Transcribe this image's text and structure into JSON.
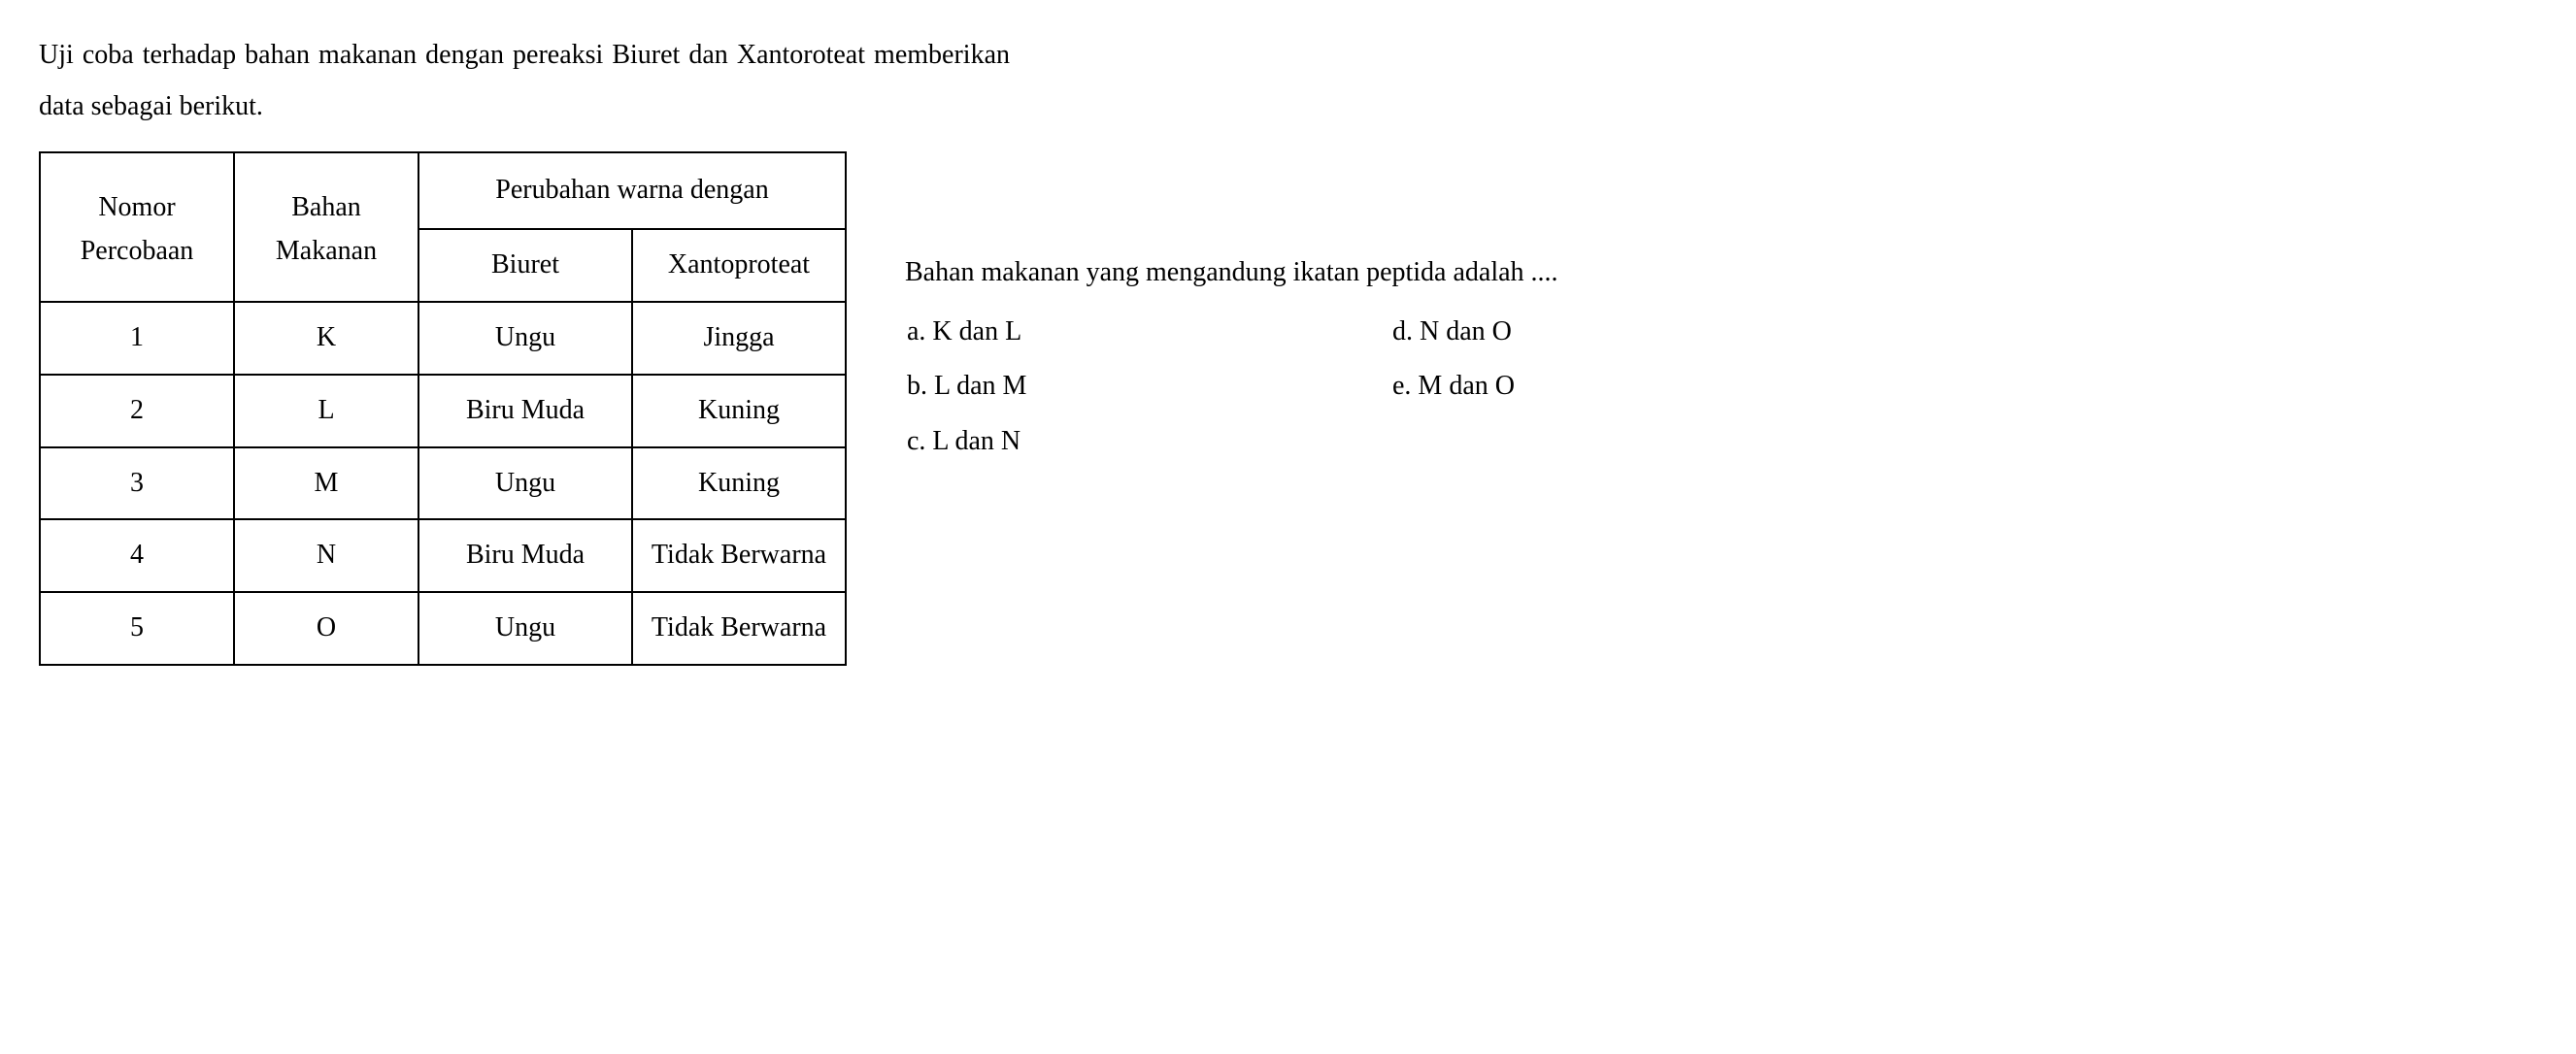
{
  "intro": {
    "line1": "Uji coba terhadap bahan makanan dengan pereaksi Biuret dan Xantoroteat memberikan data sebagai berikut."
  },
  "table": {
    "headers": {
      "nomor": "Nomor Percobaan",
      "bahan": "Bahan Makanan",
      "perubahan": "Perubahan warna dengan",
      "biuret": "Biuret",
      "xanto": "Xantoproteat"
    },
    "rows": [
      {
        "nomor": "1",
        "bahan": "K",
        "biuret": "Ungu",
        "xanto": "Jingga"
      },
      {
        "nomor": "2",
        "bahan": "L",
        "biuret": "Biru Muda",
        "xanto": "Kuning"
      },
      {
        "nomor": "3",
        "bahan": "M",
        "biuret": "Ungu",
        "xanto": "Kuning"
      },
      {
        "nomor": "4",
        "bahan": "N",
        "biuret": "Biru Muda",
        "xanto": "Tidak Berwarna"
      },
      {
        "nomor": "5",
        "bahan": "O",
        "biuret": "Ungu",
        "xanto": "Tidak Berwarna"
      }
    ]
  },
  "question": {
    "text": "Bahan makanan yang mengandung ikatan peptida adalah ....",
    "options": {
      "a": "a.  K dan L",
      "b": "b.  L dan M",
      "c": "c.  L dan N",
      "d": "d. N dan O",
      "e": "e. M dan O"
    }
  },
  "style": {
    "border_color": "#000000",
    "background_color": "#ffffff",
    "text_color": "#000000",
    "font_size_pt": 28,
    "font_family": "Times New Roman"
  }
}
